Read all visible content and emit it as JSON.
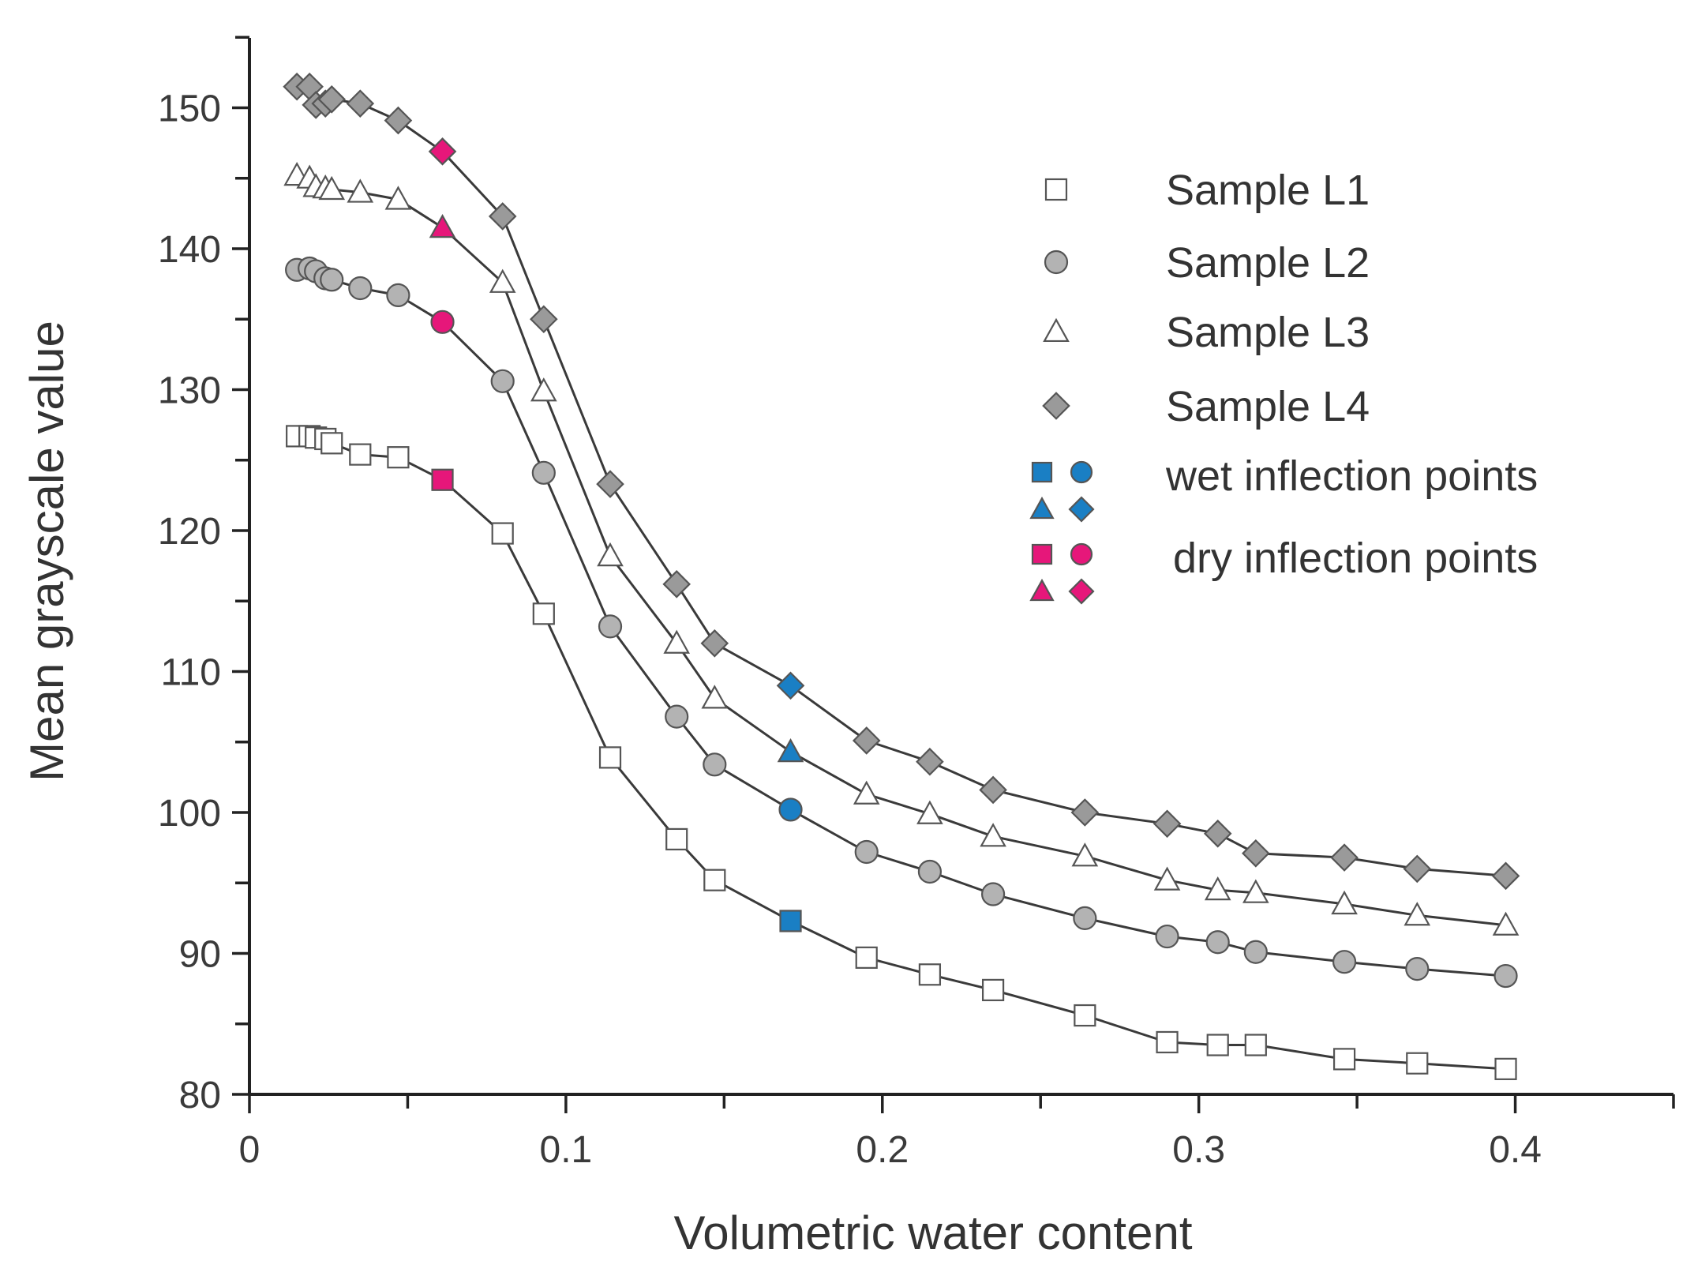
{
  "chart_data": {
    "type": "line",
    "xlabel": "Volumetric water content",
    "ylabel": "Mean grayscale value",
    "xlim": [
      0,
      0.45
    ],
    "ylim": [
      80,
      155
    ],
    "x_ticks": [
      "0",
      "0.1",
      "0.2",
      "0.3",
      "0.4"
    ],
    "y_ticks": [
      "80",
      "90",
      "100",
      "110",
      "120",
      "130",
      "140",
      "150"
    ],
    "grid": false,
    "legend_position": "top-right",
    "x": [
      0.015,
      0.019,
      0.021,
      0.024,
      0.026,
      0.035,
      0.047,
      0.061,
      0.08,
      0.093,
      0.114,
      0.135,
      0.147,
      0.171,
      0.195,
      0.215,
      0.235,
      0.264,
      0.29,
      0.306,
      0.318,
      0.346,
      0.369,
      0.397
    ],
    "series": [
      {
        "name": "Sample L1",
        "marker": "square",
        "fill": "#ffffff",
        "values": [
          126.7,
          126.7,
          126.6,
          126.5,
          126.2,
          125.4,
          125.2,
          123.6,
          119.8,
          114.1,
          103.9,
          98.1,
          95.2,
          92.3,
          89.7,
          88.5,
          87.4,
          85.6,
          83.7,
          83.5,
          83.5,
          82.5,
          82.2,
          81.8
        ]
      },
      {
        "name": "Sample L2",
        "marker": "circle",
        "fill": "#b3b3b3",
        "values": [
          138.5,
          138.6,
          138.4,
          137.9,
          137.8,
          137.2,
          136.7,
          134.8,
          130.6,
          124.1,
          113.2,
          106.8,
          103.4,
          100.2,
          97.2,
          95.8,
          94.2,
          92.5,
          91.2,
          90.8,
          90.1,
          89.4,
          88.9,
          88.4
        ]
      },
      {
        "name": "Sample L3",
        "marker": "triangle",
        "fill": "#ffffff",
        "values": [
          145.2,
          145.0,
          144.4,
          144.3,
          144.2,
          144.0,
          143.5,
          141.5,
          137.6,
          129.9,
          118.2,
          112.0,
          108.1,
          104.3,
          101.3,
          99.9,
          98.3,
          96.9,
          95.2,
          94.5,
          94.3,
          93.5,
          92.7,
          92.0
        ]
      },
      {
        "name": "Sample L4",
        "marker": "diamond",
        "fill": "#9a9a9a",
        "values": [
          151.5,
          151.5,
          150.2,
          150.3,
          150.6,
          150.3,
          149.1,
          146.9,
          142.3,
          135.0,
          123.3,
          116.2,
          112.0,
          109.0,
          105.1,
          103.6,
          101.6,
          100.0,
          99.2,
          98.5,
          97.1,
          96.8,
          96.0,
          95.5
        ]
      }
    ],
    "inflection_points": {
      "dry": {
        "label": "dry inflection points",
        "color": "#e6177a",
        "x": 0.061,
        "values": [
          123.6,
          134.8,
          141.5,
          146.9
        ]
      },
      "wet": {
        "label": "wet inflection points",
        "color": "#1a7fc4",
        "x": 0.171,
        "values": [
          92.3,
          100.2,
          104.3,
          109.0
        ]
      }
    },
    "legend": [
      {
        "label": "Sample L1",
        "marker": "square",
        "fill": "#ffffff"
      },
      {
        "label": "Sample L2",
        "marker": "circle",
        "fill": "#b3b3b3"
      },
      {
        "label": "Sample L3",
        "marker": "triangle",
        "fill": "#ffffff"
      },
      {
        "label": "Sample L4",
        "marker": "diamond",
        "fill": "#9a9a9a"
      },
      {
        "label": "wet inflection points",
        "marker": "group",
        "fill": "#1a7fc4"
      },
      {
        "label": "dry inflection points",
        "marker": "group",
        "fill": "#e6177a"
      }
    ]
  }
}
